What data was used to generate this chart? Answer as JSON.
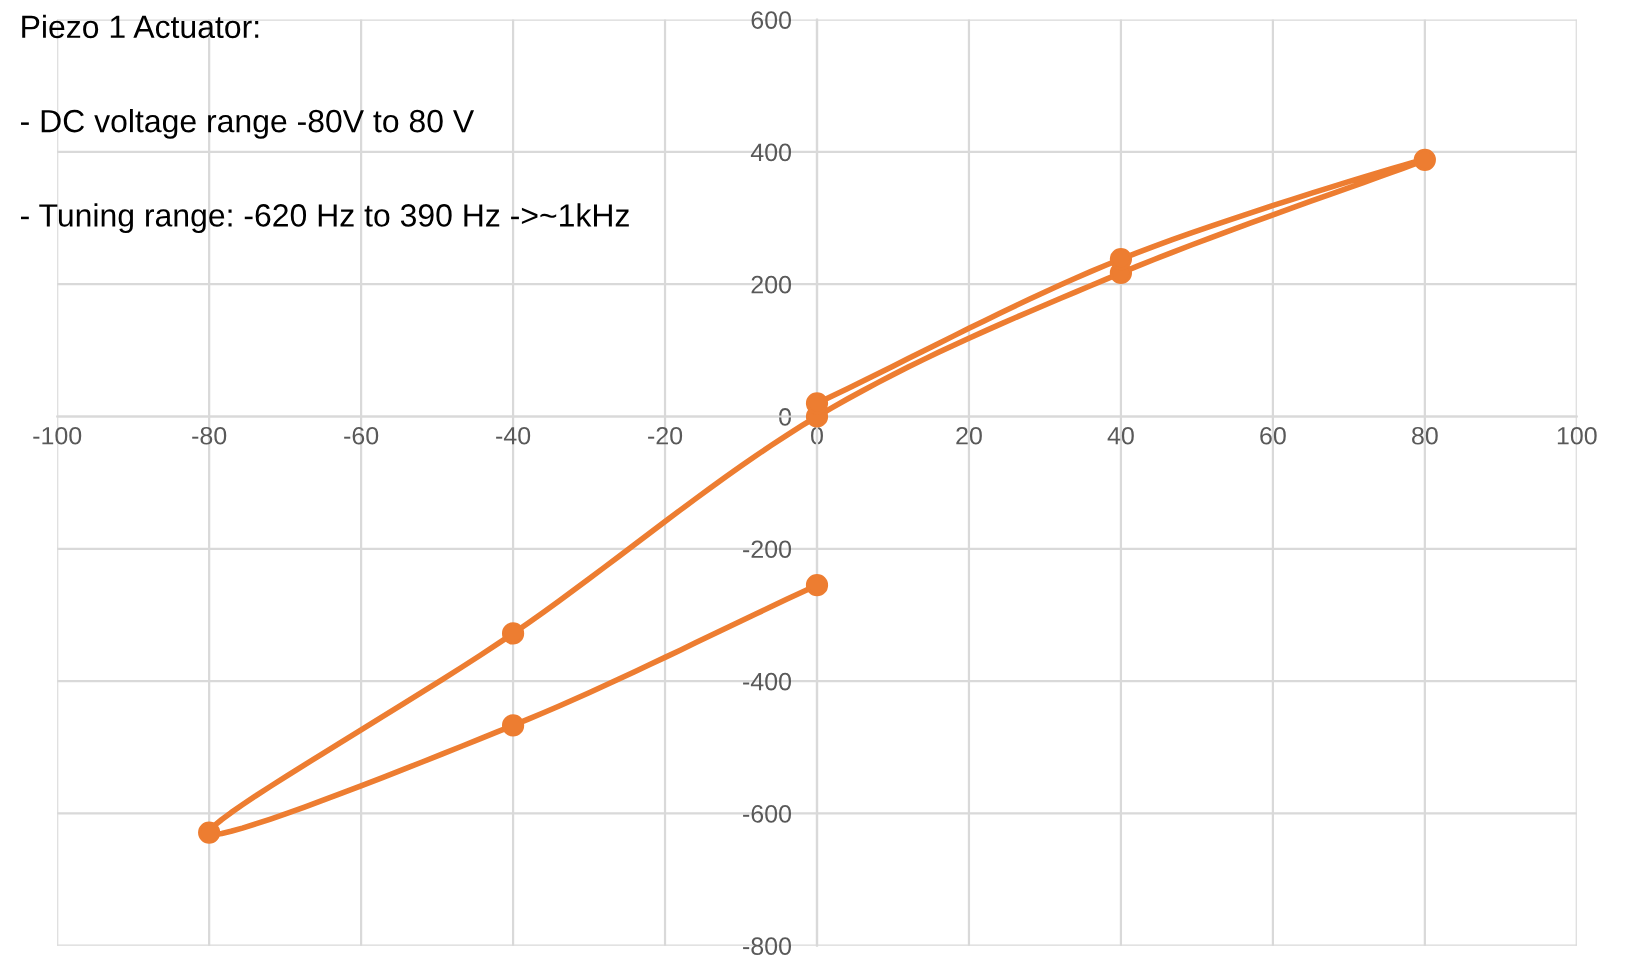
{
  "chart_data": {
    "type": "line",
    "annotations": [
      "Piezo 1 Actuator:\n\n- DC voltage range -80V to 80 V\n\n- Tuning range: -620 Hz to 390 Hz ->~1kHz"
    ],
    "series": [
      {
        "color": "#ed7d31",
        "x": [
          0,
          -40,
          -80,
          -40,
          0,
          40,
          80,
          40,
          0
        ],
        "values": [
          -255,
          -467,
          -629,
          -328,
          0,
          217,
          388,
          238,
          20
        ]
      }
    ],
    "xlim": [
      -100,
      100
    ],
    "xticks": [
      -100,
      -80,
      -60,
      -40,
      -20,
      0,
      20,
      40,
      60,
      80,
      100
    ],
    "ylim": [
      -800,
      600
    ],
    "yticks": [
      -800,
      -600,
      -400,
      -200,
      0,
      200,
      400,
      600
    ],
    "grid": true,
    "marker": "circle",
    "line_style": "solid"
  }
}
